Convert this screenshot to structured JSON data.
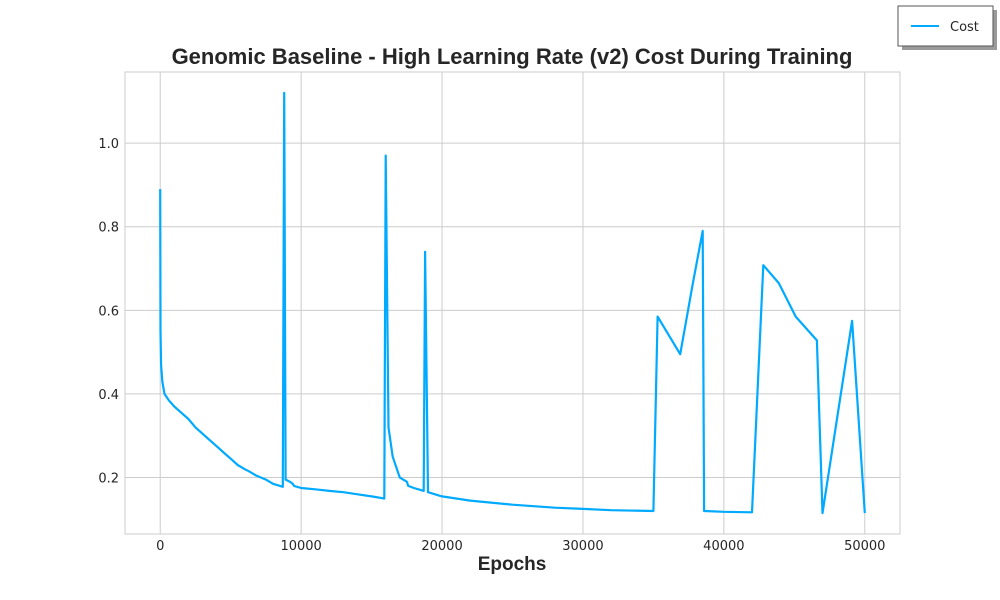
{
  "chart_data": {
    "type": "line",
    "title": "Genomic Baseline - High Learning Rate (v2) Cost During Training",
    "xlabel": "Epochs",
    "ylabel": "",
    "xlim": [
      -2500,
      52500
    ],
    "ylim": [
      0.065,
      1.17
    ],
    "xticks": [
      0,
      10000,
      20000,
      30000,
      40000,
      50000
    ],
    "xtick_labels": [
      "0",
      "10000",
      "20000",
      "30000",
      "40000",
      "50000"
    ],
    "yticks": [
      0.2,
      0.4,
      0.6,
      0.8,
      1.0
    ],
    "ytick_labels": [
      "0.2",
      "0.4",
      "0.6",
      "0.8",
      "1.0"
    ],
    "grid": true,
    "legend_position": "top-right",
    "color": "#00aaff",
    "series": [
      {
        "name": "Cost",
        "x": [
          0,
          20,
          60,
          150,
          300,
          600,
          1000,
          1500,
          2000,
          2500,
          3000,
          3500,
          4000,
          4500,
          5000,
          5500,
          6000,
          6300,
          6800,
          7500,
          8000,
          8500,
          8700,
          8800,
          8900,
          9200,
          9400,
          9500,
          10000,
          11000,
          12000,
          13000,
          14000,
          15000,
          15900,
          16000,
          16200,
          16500,
          17000,
          17500,
          17600,
          18000,
          18500,
          18700,
          18800,
          19000,
          20000,
          22000,
          25000,
          28000,
          30000,
          32000,
          35000,
          35300,
          36900,
          37800,
          38500,
          38600,
          40000,
          42000,
          42800,
          43900,
          45100,
          46600,
          47000,
          49100,
          50000
        ],
        "y": [
          0.89,
          0.55,
          0.47,
          0.43,
          0.4,
          0.385,
          0.37,
          0.355,
          0.34,
          0.32,
          0.305,
          0.29,
          0.275,
          0.26,
          0.245,
          0.23,
          0.22,
          0.215,
          0.205,
          0.195,
          0.185,
          0.18,
          0.178,
          1.12,
          0.195,
          0.19,
          0.185,
          0.18,
          0.175,
          0.172,
          0.168,
          0.165,
          0.16,
          0.155,
          0.15,
          0.97,
          0.32,
          0.25,
          0.2,
          0.19,
          0.18,
          0.175,
          0.17,
          0.168,
          0.74,
          0.165,
          0.155,
          0.145,
          0.135,
          0.128,
          0.125,
          0.122,
          0.12,
          0.585,
          0.495,
          0.665,
          0.79,
          0.12,
          0.118,
          0.117,
          0.708,
          0.665,
          0.585,
          0.528,
          0.115,
          0.575,
          0.115
        ]
      }
    ]
  }
}
